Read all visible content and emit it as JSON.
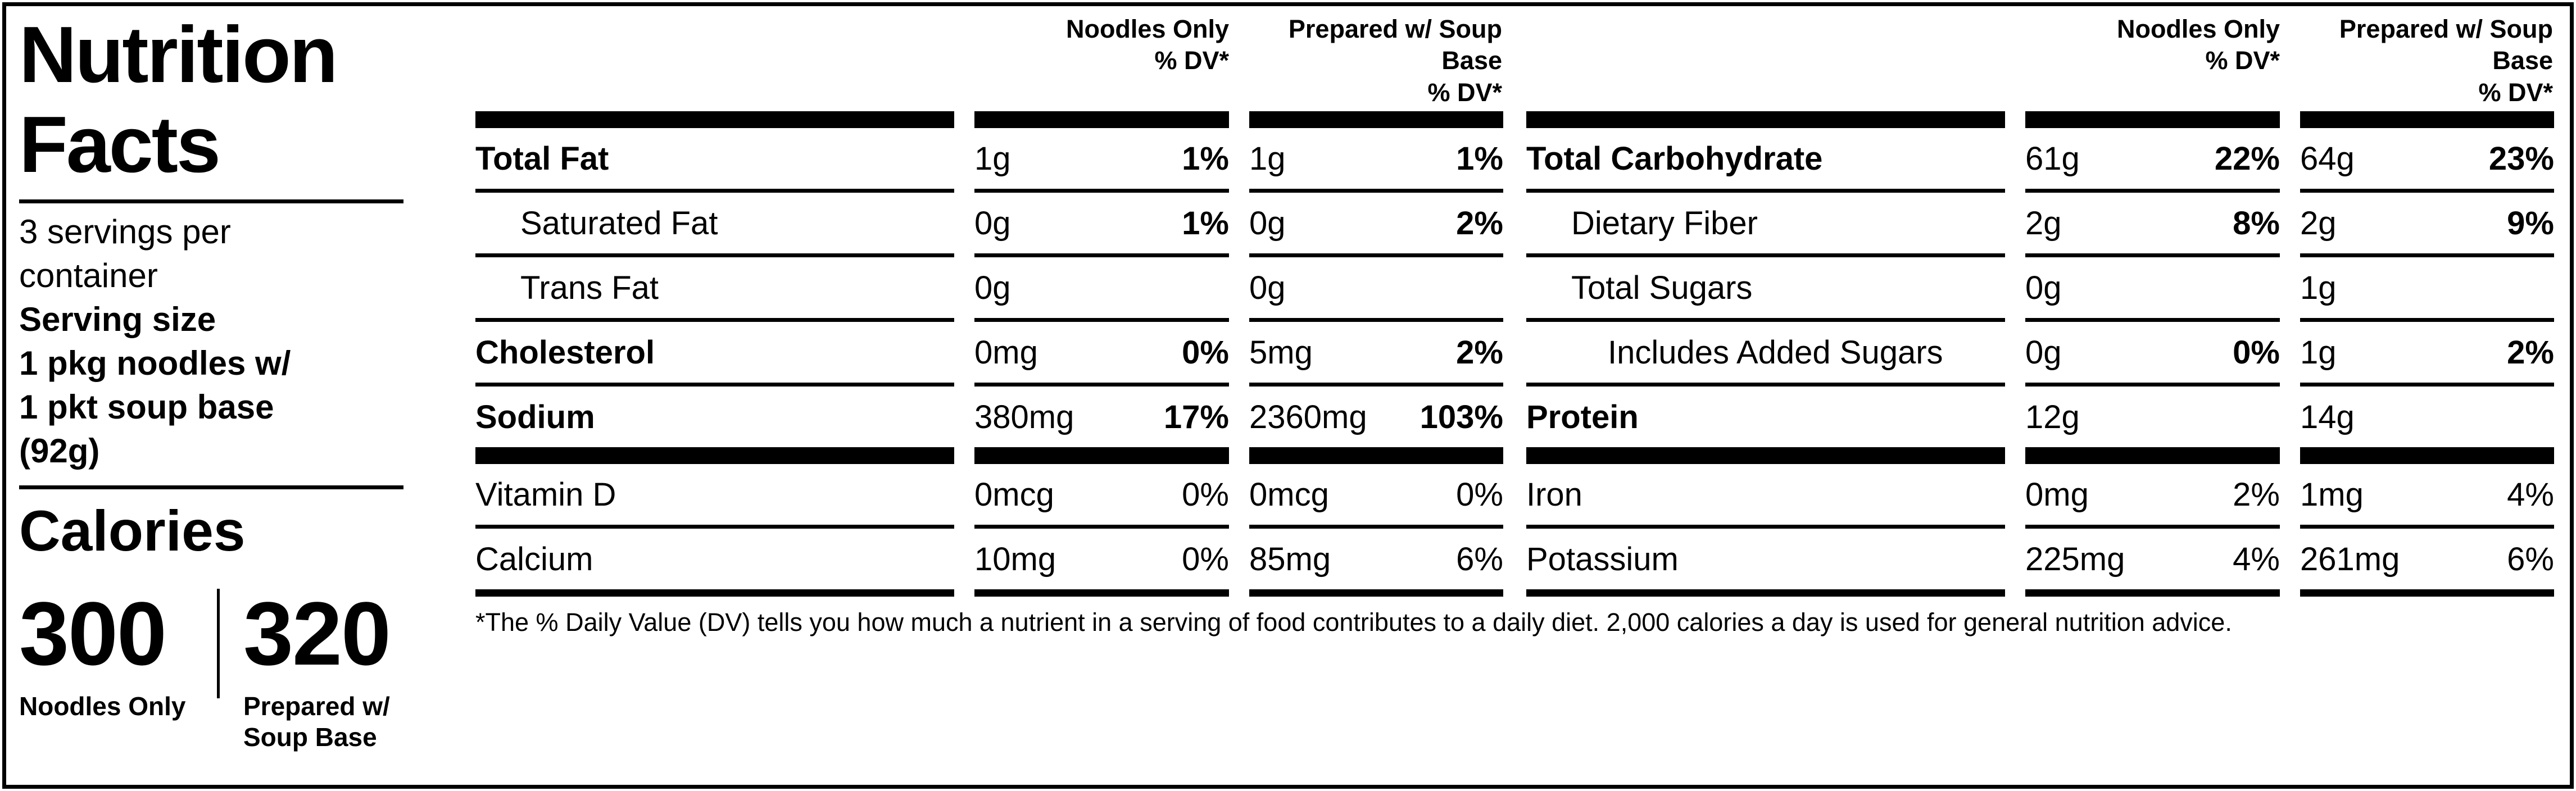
{
  "colors": {
    "text": "#000000",
    "background": "#ffffff"
  },
  "panel": {
    "title": [
      "Nutrition",
      "Facts"
    ],
    "servings": [
      "3 servings per",
      "container"
    ],
    "serving_size_label": "Serving size",
    "serving_size": [
      "1 pkg noodles w/",
      "1 pkt soup base",
      "(92g)"
    ],
    "calories_word": "Calories",
    "calories": [
      {
        "value": "300",
        "label_lines": [
          "Noodles Only"
        ]
      },
      {
        "value": "320",
        "label_lines": [
          "Prepared w/",
          "Soup Base"
        ]
      }
    ]
  },
  "tables": [
    {
      "headers": [
        [
          "Noodles Only",
          "% DV*"
        ],
        [
          "Prepared w/ Soup",
          "Base",
          "% DV*"
        ]
      ],
      "rows": [
        {
          "label": "Total Fat",
          "label_bold": true,
          "indent": 0,
          "amt1": "1g",
          "dv1": "1%",
          "amt2": "1g",
          "dv2": "1%",
          "dv_bold": true,
          "sep": "thin"
        },
        {
          "label": "Saturated Fat",
          "label_bold": false,
          "indent": 1,
          "amt1": "0g",
          "dv1": "1%",
          "amt2": "0g",
          "dv2": "2%",
          "dv_bold": true,
          "sep": "thin"
        },
        {
          "label": "Trans Fat",
          "label_bold": false,
          "indent": 1,
          "amt1": "0g",
          "dv1": "",
          "amt2": "0g",
          "dv2": "",
          "dv_bold": false,
          "sep": "thin"
        },
        {
          "label": "Cholesterol",
          "label_bold": true,
          "indent": 0,
          "amt1": "0mg",
          "dv1": "0%",
          "amt2": "5mg",
          "dv2": "2%",
          "dv_bold": true,
          "sep": "thin"
        },
        {
          "label": "Sodium",
          "label_bold": true,
          "indent": 0,
          "amt1": "380mg",
          "dv1": "17%",
          "amt2": "2360mg",
          "dv2": "103%",
          "dv_bold": true,
          "sep": "bar"
        },
        {
          "label": "Vitamin D",
          "label_bold": false,
          "indent": 0,
          "amt1": "0mcg",
          "dv1": "0%",
          "amt2": "0mcg",
          "dv2": "0%",
          "dv_bold": false,
          "sep": "thin"
        },
        {
          "label": "Calcium",
          "label_bold": false,
          "indent": 0,
          "amt1": "10mg",
          "dv1": "0%",
          "amt2": "85mg",
          "dv2": "6%",
          "dv_bold": false,
          "sep": "thick"
        }
      ]
    },
    {
      "headers": [
        [
          "Noodles Only",
          "% DV*"
        ],
        [
          "Prepared w/ Soup",
          "Base",
          "% DV*"
        ]
      ],
      "rows": [
        {
          "label": "Total Carbohydrate",
          "label_bold": true,
          "indent": 0,
          "amt1": "61g",
          "dv1": "22%",
          "amt2": "64g",
          "dv2": "23%",
          "dv_bold": true,
          "sep": "thin"
        },
        {
          "label": "Dietary Fiber",
          "label_bold": false,
          "indent": 1,
          "amt1": "2g",
          "dv1": "8%",
          "amt2": "2g",
          "dv2": "9%",
          "dv_bold": true,
          "sep": "thin"
        },
        {
          "label": "Total Sugars",
          "label_bold": false,
          "indent": 1,
          "amt1": "0g",
          "dv1": "",
          "amt2": "1g",
          "dv2": "",
          "dv_bold": false,
          "sep": "thin"
        },
        {
          "label": "Includes Added Sugars",
          "label_bold": false,
          "indent": 2,
          "amt1": "0g",
          "dv1": "0%",
          "amt2": "1g",
          "dv2": "2%",
          "dv_bold": true,
          "sep": "thin"
        },
        {
          "label": "Protein",
          "label_bold": true,
          "indent": 0,
          "amt1": "12g",
          "dv1": "",
          "amt2": "14g",
          "dv2": "",
          "dv_bold": false,
          "sep": "bar"
        },
        {
          "label": "Iron",
          "label_bold": false,
          "indent": 0,
          "amt1": "0mg",
          "dv1": "2%",
          "amt2": "1mg",
          "dv2": "4%",
          "dv_bold": false,
          "sep": "thin"
        },
        {
          "label": "Potassium",
          "label_bold": false,
          "indent": 0,
          "amt1": "225mg",
          "dv1": "4%",
          "amt2": "261mg",
          "dv2": "6%",
          "dv_bold": false,
          "sep": "thick"
        }
      ]
    }
  ],
  "footnote": "*The % Daily Value (DV) tells you how much a nutrient in a serving of food contributes to a daily diet. 2,000 calories a day is used for general nutrition advice."
}
